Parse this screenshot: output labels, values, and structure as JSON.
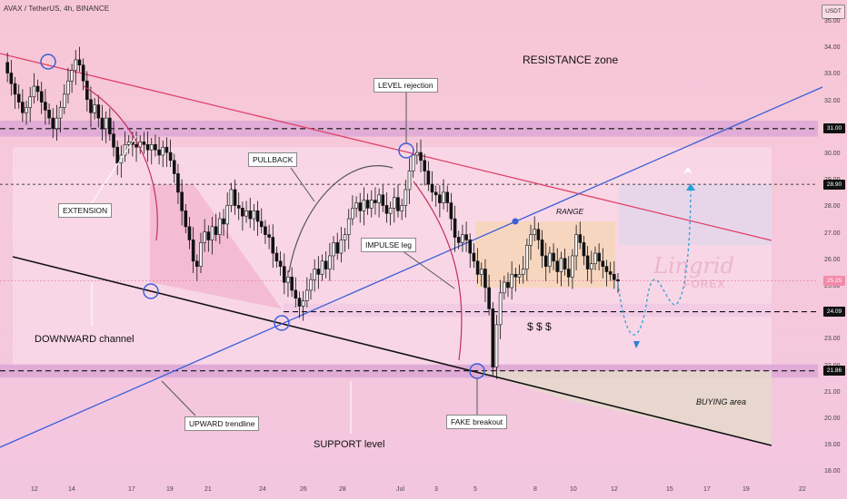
{
  "header": {
    "symbol": "AVAX / TetherUS, 4h, BINANCE",
    "currency_button": "USDT"
  },
  "annotations": {
    "resistance_zone": "RESISTANCE zone",
    "level_rejection": "LEVEL rejection",
    "pullback": "PULLBACK",
    "extension": "EXTENSION",
    "range": "RANGE",
    "impulse_leg": "IMPULSE leg",
    "downward_channel": "DOWNWARD channel",
    "upward_trendline": "UPWARD trendline",
    "support_level": "SUPPORT level",
    "fake_breakout": "FAKE breakout",
    "buying_area": "BUYING area",
    "dollar_signs": "$    $    $"
  },
  "watermark": {
    "brand": "Lingrid",
    "sub": "FOREX"
  },
  "colors": {
    "background_top": "#f7c6d6",
    "candle_up": "#f4f4f4",
    "candle_down": "#111111",
    "channel_upper": "#e0406a",
    "channel_lower": "#111111",
    "trendline": "#3a5fd8",
    "zone": "#d9a3d4",
    "range_box": "#f7d6b9",
    "buying_area": "#e6d8cc",
    "target_box": "#e4d6ea"
  },
  "chart_data": {
    "type": "candlestick",
    "symbol": "AVAX/USDT",
    "timeframe": "4h",
    "ylim": [
      18.0,
      35.0
    ],
    "y_ticks": [
      18,
      19,
      20,
      21,
      22,
      23,
      24,
      25,
      26,
      27,
      28,
      29,
      30,
      31,
      32,
      33,
      34,
      35
    ],
    "y_tick_labels": [
      "18.00",
      "19.00",
      "20.00",
      "21.00",
      "22.00",
      "23.00",
      "24.00",
      "25.00",
      "26.00",
      "27.00",
      "28.00",
      "29.00",
      "30.00",
      "31.00",
      "32.00",
      "33.00",
      "34.00",
      "35.00"
    ],
    "x_tick_labels": [
      "12",
      "14",
      "17",
      "19",
      "21",
      "24",
      "26",
      "28",
      "Jul",
      "3",
      "5",
      "8",
      "10",
      "12",
      "15",
      "17",
      "19",
      "22"
    ],
    "price_labels": [
      {
        "value": "31.00"
      },
      {
        "value": "28.90"
      },
      {
        "value": "25.25",
        "current": true
      },
      {
        "value": "24.09"
      },
      {
        "value": "21.86"
      }
    ],
    "levels": {
      "resistance": 31.0,
      "target": 28.9,
      "current": 25.25,
      "mid_support": 24.09,
      "support": 21.86
    },
    "closes": [
      33.5,
      33.1,
      32.7,
      32.3,
      32.0,
      31.6,
      31.8,
      32.2,
      32.6,
      32.4,
      32.0,
      31.7,
      31.4,
      31.0,
      31.4,
      31.8,
      32.3,
      32.8,
      33.2,
      33.6,
      33.4,
      32.8,
      32.1,
      31.6,
      31.9,
      31.4,
      31.0,
      31.4,
      30.8,
      30.3,
      29.7,
      30.0,
      30.4,
      30.5,
      30.4,
      30.3,
      30.5,
      30.4,
      30.2,
      30.4,
      30.2,
      30.0,
      30.3,
      30.1,
      29.8,
      29.3,
      28.6,
      27.9,
      27.3,
      26.8,
      26.0,
      25.8,
      26.7,
      27.1,
      26.8,
      27.3,
      27.0,
      27.6,
      27.4,
      28.1,
      28.7,
      28.1,
      28.0,
      27.7,
      27.9,
      27.6,
      27.9,
      27.5,
      27.3,
      27.0,
      26.9,
      26.3,
      26.0,
      25.8,
      25.2,
      25.4,
      24.9,
      24.6,
      24.3,
      24.5,
      24.9,
      25.3,
      25.7,
      25.5,
      26.0,
      25.7,
      26.2,
      26.7,
      26.3,
      26.8,
      27.0,
      27.6,
      28.0,
      28.2,
      27.9,
      28.3,
      28.0,
      28.3,
      28.2,
      28.5,
      28.1,
      27.8,
      28.0,
      28.4,
      27.9,
      28.1,
      28.7,
      29.4,
      30.0,
      30.1,
      29.8,
      29.4,
      28.9,
      28.6,
      28.5,
      28.2,
      28.6,
      28.2,
      27.6,
      26.9,
      26.7,
      27.0,
      26.8,
      26.3,
      26.0,
      25.5,
      25.7,
      25.0,
      24.2,
      22.0,
      23.6,
      24.8,
      25.2,
      25.0,
      25.5,
      25.4,
      25.5,
      25.7,
      26.6,
      27.0,
      27.2,
      26.8,
      26.2,
      25.8,
      26.3,
      26.0,
      25.6,
      26.1,
      25.7,
      25.4,
      26.2,
      27.0,
      26.7,
      26.2,
      25.7,
      25.9,
      26.3,
      26.0,
      25.8,
      25.6,
      25.5,
      25.3,
      25.25
    ]
  }
}
